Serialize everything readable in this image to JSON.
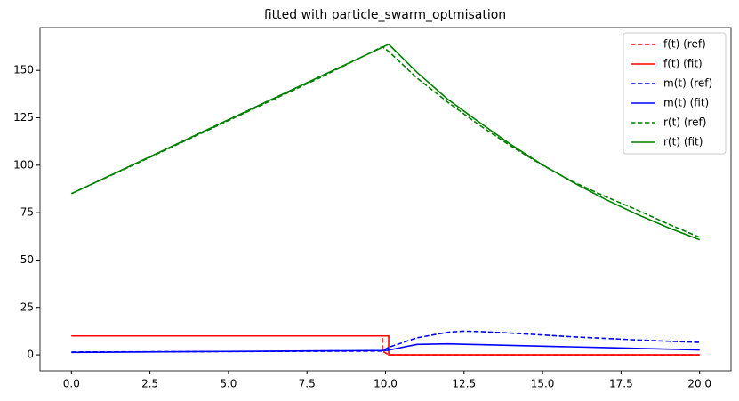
{
  "chart_data": {
    "type": "line",
    "title": "fitted with particle_swarm_optmisation",
    "x": [
      0,
      2,
      4,
      6,
      8,
      9.9,
      9.9,
      10.1,
      10.1,
      11,
      12,
      12.5,
      13,
      14,
      15,
      16,
      17,
      18,
      19,
      20
    ],
    "series": [
      {
        "name": "f(t) (ref)",
        "color": "#ff0000",
        "style": "dashed",
        "values": [
          10,
          10,
          10,
          10,
          10,
          10,
          2,
          0,
          0,
          0,
          0,
          0,
          0,
          0,
          0,
          0,
          0,
          0,
          0,
          0
        ]
      },
      {
        "name": "f(t) (fit)",
        "color": "#ff0000",
        "style": "solid",
        "values": [
          10,
          10,
          10,
          10,
          10,
          10,
          10,
          10,
          0,
          0,
          0,
          0,
          0,
          0,
          0,
          0,
          0,
          0,
          0,
          0
        ]
      },
      {
        "name": "m(t) (ref)",
        "color": "#0000ff",
        "style": "dashed",
        "values": [
          1.5,
          1.6,
          1.7,
          1.8,
          1.9,
          2,
          2,
          4,
          4,
          9,
          12,
          12.5,
          12.3,
          11.5,
          10.5,
          9.5,
          8.7,
          7.9,
          7.2,
          6.6
        ]
      },
      {
        "name": "m(t) (fit)",
        "color": "#0000ff",
        "style": "solid",
        "values": [
          1.3,
          1.5,
          1.7,
          1.9,
          2.1,
          2.3,
          2.3,
          2.4,
          2.5,
          5.5,
          5.8,
          5.6,
          5.4,
          5,
          4.6,
          4.2,
          3.8,
          3.4,
          3,
          2.6
        ]
      },
      {
        "name": "r(t) (ref)",
        "color": "#008000",
        "style": "dashed",
        "values": [
          85,
          100.3,
          115.8,
          131.3,
          146.8,
          162.5,
          162.5,
          160,
          160,
          146,
          133,
          127,
          121,
          110,
          100,
          91,
          83.5,
          76.5,
          69,
          62
        ]
      },
      {
        "name": "r(t) (fit)",
        "color": "#008000",
        "style": "solid",
        "values": [
          85,
          100.6,
          116.2,
          131.8,
          147.4,
          162.2,
          162.2,
          163.8,
          163.8,
          149,
          134.5,
          128.5,
          122.5,
          110.8,
          100.2,
          90.7,
          82,
          74.2,
          67.1,
          60.7
        ]
      }
    ],
    "xlim": [
      -1,
      21
    ],
    "ylim": [
      -8.4,
      172.6
    ],
    "xticks": [
      {
        "value": 0,
        "label": "0.0"
      },
      {
        "value": 2.5,
        "label": "2.5"
      },
      {
        "value": 5,
        "label": "5.0"
      },
      {
        "value": 7.5,
        "label": "7.5"
      },
      {
        "value": 10,
        "label": "10.0"
      },
      {
        "value": 12.5,
        "label": "12.5"
      },
      {
        "value": 15,
        "label": "15.0"
      },
      {
        "value": 17.5,
        "label": "17.5"
      },
      {
        "value": 20,
        "label": "20.0"
      }
    ],
    "yticks": [
      0,
      25,
      50,
      75,
      100,
      125,
      150
    ],
    "grid": false,
    "legend": "upper right"
  }
}
